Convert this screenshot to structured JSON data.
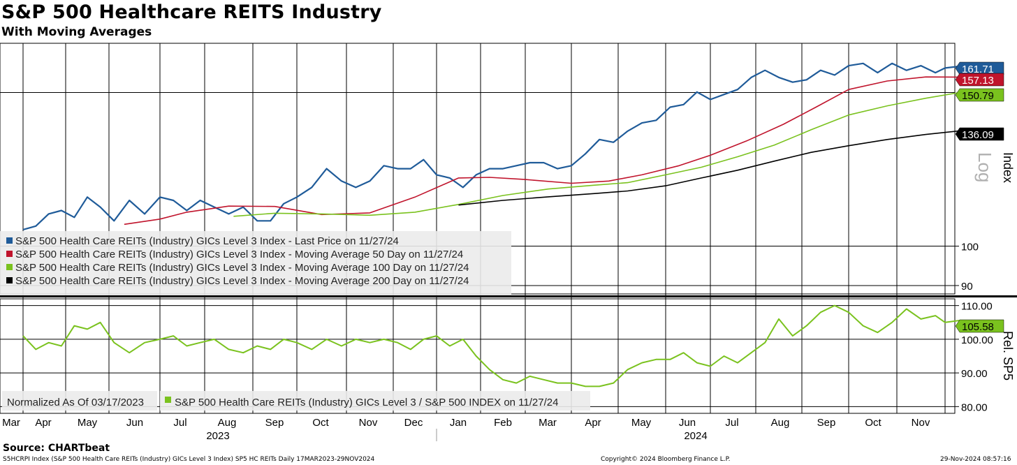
{
  "title": "S&P 500 Healthcare REITS Industry",
  "subtitle": "With Moving Averages",
  "footer": {
    "source": "Source: CHARTbeat",
    "description": "S5HCRPI Index (S&P 500 Health Care REITs (Industry) GICs Level 3 Index) SP5 HC REITs  Daily 17MAR2023-29NOV2024",
    "copyright": "Copyright© 2024 Bloomberg Finance L.P.",
    "timestamp": "29-Nov-2024 08:57:16"
  },
  "chart_data": [
    {
      "type": "line",
      "title": "S&P 500 Healthcare REITS Industry",
      "ylabel": "Index",
      "scale": "log",
      "scale_label": "Log",
      "ylim": [
        88,
        172
      ],
      "yticks": [
        90,
        100
      ],
      "x_months": [
        "Mar",
        "Apr",
        "May",
        "Jun",
        "Jul",
        "Aug",
        "Sep",
        "Oct",
        "Nov",
        "Dec",
        "Jan",
        "Feb",
        "Mar",
        "Apr",
        "May",
        "Jun",
        "Jul",
        "Aug",
        "Sep",
        "Oct",
        "Nov"
      ],
      "x_years": [
        "2023",
        "2024"
      ],
      "legend": [
        "S&P 500 Health Care REITs (Industry) GICs Level 3 Index - Last Price on 11/27/24",
        "S&P 500 Health Care REITs (Industry) GICs Level 3 Index - Moving Average 50 Day on 11/27/24",
        "S&P 500 Health Care REITs (Industry) GICs Level 3 Index - Moving Average 100 Day on 11/27/24",
        "S&P 500 Health Care REITs (Industry) GICs Level 3 Index - Moving Average 200 Day on 11/27/24"
      ],
      "last_value_labels": [
        "161.71",
        "157.13",
        "150.79",
        "136.09"
      ],
      "series": [
        {
          "name": "Last Price",
          "color": "#1f5b99",
          "x": [
            0,
            0.3,
            0.6,
            0.9,
            1.2,
            1.5,
            1.8,
            2.1,
            2.4,
            2.7,
            3,
            3.3,
            3.6,
            3.9,
            4.2,
            4.5,
            4.8,
            5.1,
            5.4,
            5.7,
            6,
            6.3,
            6.6,
            6.9,
            7.2,
            7.5,
            7.8,
            8.1,
            8.4,
            8.7,
            9,
            9.3,
            9.6,
            9.9,
            10.2,
            10.5,
            10.8,
            11.1,
            11.4,
            11.7,
            12,
            12.3,
            12.6,
            12.9,
            13.2,
            13.5,
            13.8,
            14.1,
            14.4,
            14.7,
            15,
            15.3,
            15.6,
            15.9,
            16.2,
            16.5,
            16.8,
            17.1,
            17.4,
            17.7,
            18,
            18.3,
            18.6,
            18.9,
            19.2,
            19.5,
            19.8,
            20,
            20.3
          ],
          "values": [
            104.5,
            105.5,
            109,
            110,
            108,
            114,
            111,
            107,
            113,
            109,
            114,
            113,
            110,
            113,
            111,
            109,
            111,
            107,
            107,
            112,
            114,
            117,
            123,
            119,
            117,
            119,
            124,
            123,
            123,
            126,
            121,
            120,
            117,
            121,
            123,
            123,
            124,
            125,
            125,
            123,
            124,
            128,
            133,
            132,
            136,
            139,
            140,
            145,
            146,
            151,
            148,
            150,
            152,
            157,
            160,
            157,
            155,
            156,
            160,
            158,
            162,
            163,
            159,
            163,
            160,
            162,
            159,
            161,
            161.71
          ]
        },
        {
          "name": "Moving Average 50 Day",
          "color": "#c0142c",
          "x": [
            2.3,
            3,
            3.6,
            4.5,
            5.5,
            6.5,
            7.5,
            8.5,
            9.5,
            10.2,
            11,
            12,
            12.8,
            13.5,
            14.3,
            15,
            15.8,
            16.6,
            17.3,
            18,
            18.8,
            19.6,
            20.3
          ],
          "values": [
            106,
            107.5,
            109.5,
            111.3,
            111.2,
            108.8,
            109.3,
            114,
            120,
            120.2,
            119.5,
            118.3,
            119,
            121,
            124,
            127.5,
            132.5,
            138.5,
            145,
            152,
            155.5,
            157.2,
            157.13
          ]
        },
        {
          "name": "Moving Average 100 Day",
          "color": "#7ac21e",
          "x": [
            4.6,
            5.5,
            6.5,
            7.5,
            8.5,
            9.5,
            10.5,
            11.5,
            12.5,
            13.2,
            14,
            14.8,
            15.6,
            16.4,
            17.2,
            18,
            18.8,
            19.6,
            20.3
          ],
          "values": [
            108.3,
            109.2,
            109,
            108.6,
            109.5,
            111.8,
            114.5,
            116.5,
            117.7,
            118.5,
            121,
            123.5,
            127,
            131,
            136.5,
            142,
            145.5,
            148.5,
            150.79
          ]
        },
        {
          "name": "Moving Average 200 Day",
          "color": "#000000",
          "x": [
            9.5,
            10.5,
            11.5,
            12.5,
            13.2,
            14,
            14.8,
            15.6,
            16.4,
            17.2,
            18,
            18.8,
            19.6,
            20.3
          ],
          "values": [
            111.6,
            113,
            114.1,
            115.1,
            115.9,
            117.5,
            120,
            122.5,
            125.5,
            128.5,
            130.8,
            133,
            134.8,
            136.09
          ]
        }
      ]
    },
    {
      "type": "line",
      "ylabel": "Rel. SP5",
      "ylim": [
        78,
        112
      ],
      "yticks": [
        "80.00",
        "90.00",
        "100.00",
        "110.00"
      ],
      "legend": [
        "Normalized As Of 03/17/2023",
        "S&P 500 Health Care REITs (Industry) GICs Level 3 / S&P 500 INDEX on 11/27/24"
      ],
      "last_value_label": "105.58",
      "series": [
        {
          "name": "S&P 500 Health Care REITs (Industry) GICs Level 3 / S&P 500 INDEX",
          "color": "#7ac21e",
          "x": [
            0,
            0.3,
            0.6,
            0.9,
            1.2,
            1.5,
            1.8,
            2.1,
            2.4,
            2.7,
            3,
            3.3,
            3.6,
            3.9,
            4.2,
            4.5,
            4.8,
            5.1,
            5.4,
            5.7,
            6,
            6.3,
            6.6,
            6.9,
            7.2,
            7.5,
            7.8,
            8.1,
            8.4,
            8.7,
            9,
            9.3,
            9.6,
            9.9,
            10.2,
            10.5,
            10.8,
            11.1,
            11.4,
            11.7,
            12,
            12.3,
            12.6,
            12.9,
            13.2,
            13.5,
            13.8,
            14.1,
            14.4,
            14.7,
            15,
            15.3,
            15.6,
            15.9,
            16.2,
            16.5,
            16.8,
            17.1,
            17.4,
            17.7,
            18,
            18.3,
            18.6,
            18.9,
            19.2,
            19.5,
            19.8,
            20,
            20.3
          ],
          "values": [
            101,
            97,
            99,
            98,
            104,
            103,
            105,
            99,
            96,
            99,
            100,
            101,
            98,
            99,
            100,
            97,
            96,
            98,
            97,
            100,
            99,
            97,
            100,
            98,
            100,
            99,
            100,
            99,
            97,
            100,
            101,
            98,
            100,
            95,
            91,
            88,
            87,
            89,
            88,
            87,
            87,
            86,
            86,
            87,
            91,
            93,
            94,
            94,
            96,
            93,
            92,
            95,
            93,
            96,
            99,
            106,
            101,
            104,
            108,
            110,
            108,
            104,
            102,
            105,
            109,
            106,
            107,
            105,
            105.58
          ]
        }
      ]
    }
  ]
}
